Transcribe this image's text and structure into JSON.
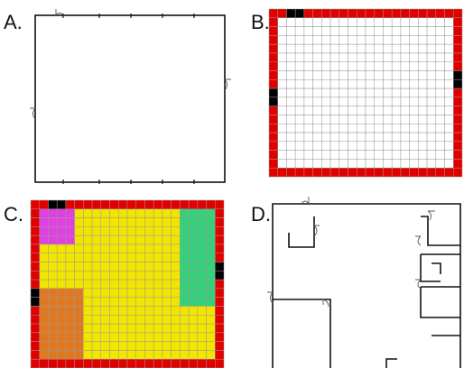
{
  "panels": {
    "a": {
      "label": "A."
    },
    "b": {
      "label": "B."
    },
    "c": {
      "label": "C."
    },
    "d": {
      "label": "D."
    }
  },
  "grid": {
    "cols": 22,
    "rows": 19
  },
  "colors": {
    "wall": "#e00000",
    "door": "#000000",
    "floor_b": "#ffffff",
    "floor_c": "#f2e600",
    "zone_magenta": "#e040e0",
    "zone_green": "#33d17a",
    "zone_orange": "#e07820",
    "grid_line": "#9a9a9a"
  },
  "zones_c": [
    {
      "name": "magenta-zone",
      "color_key": "zone_magenta",
      "col0": 1,
      "row0": 1,
      "col1": 4,
      "row1": 4
    },
    {
      "name": "green-zone",
      "color_key": "zone_green",
      "col0": 17,
      "row0": 1,
      "col1": 20,
      "row1": 11
    },
    {
      "name": "orange-zone",
      "color_key": "zone_orange",
      "col0": 1,
      "row0": 10,
      "col1": 5,
      "row1": 17
    }
  ]
}
